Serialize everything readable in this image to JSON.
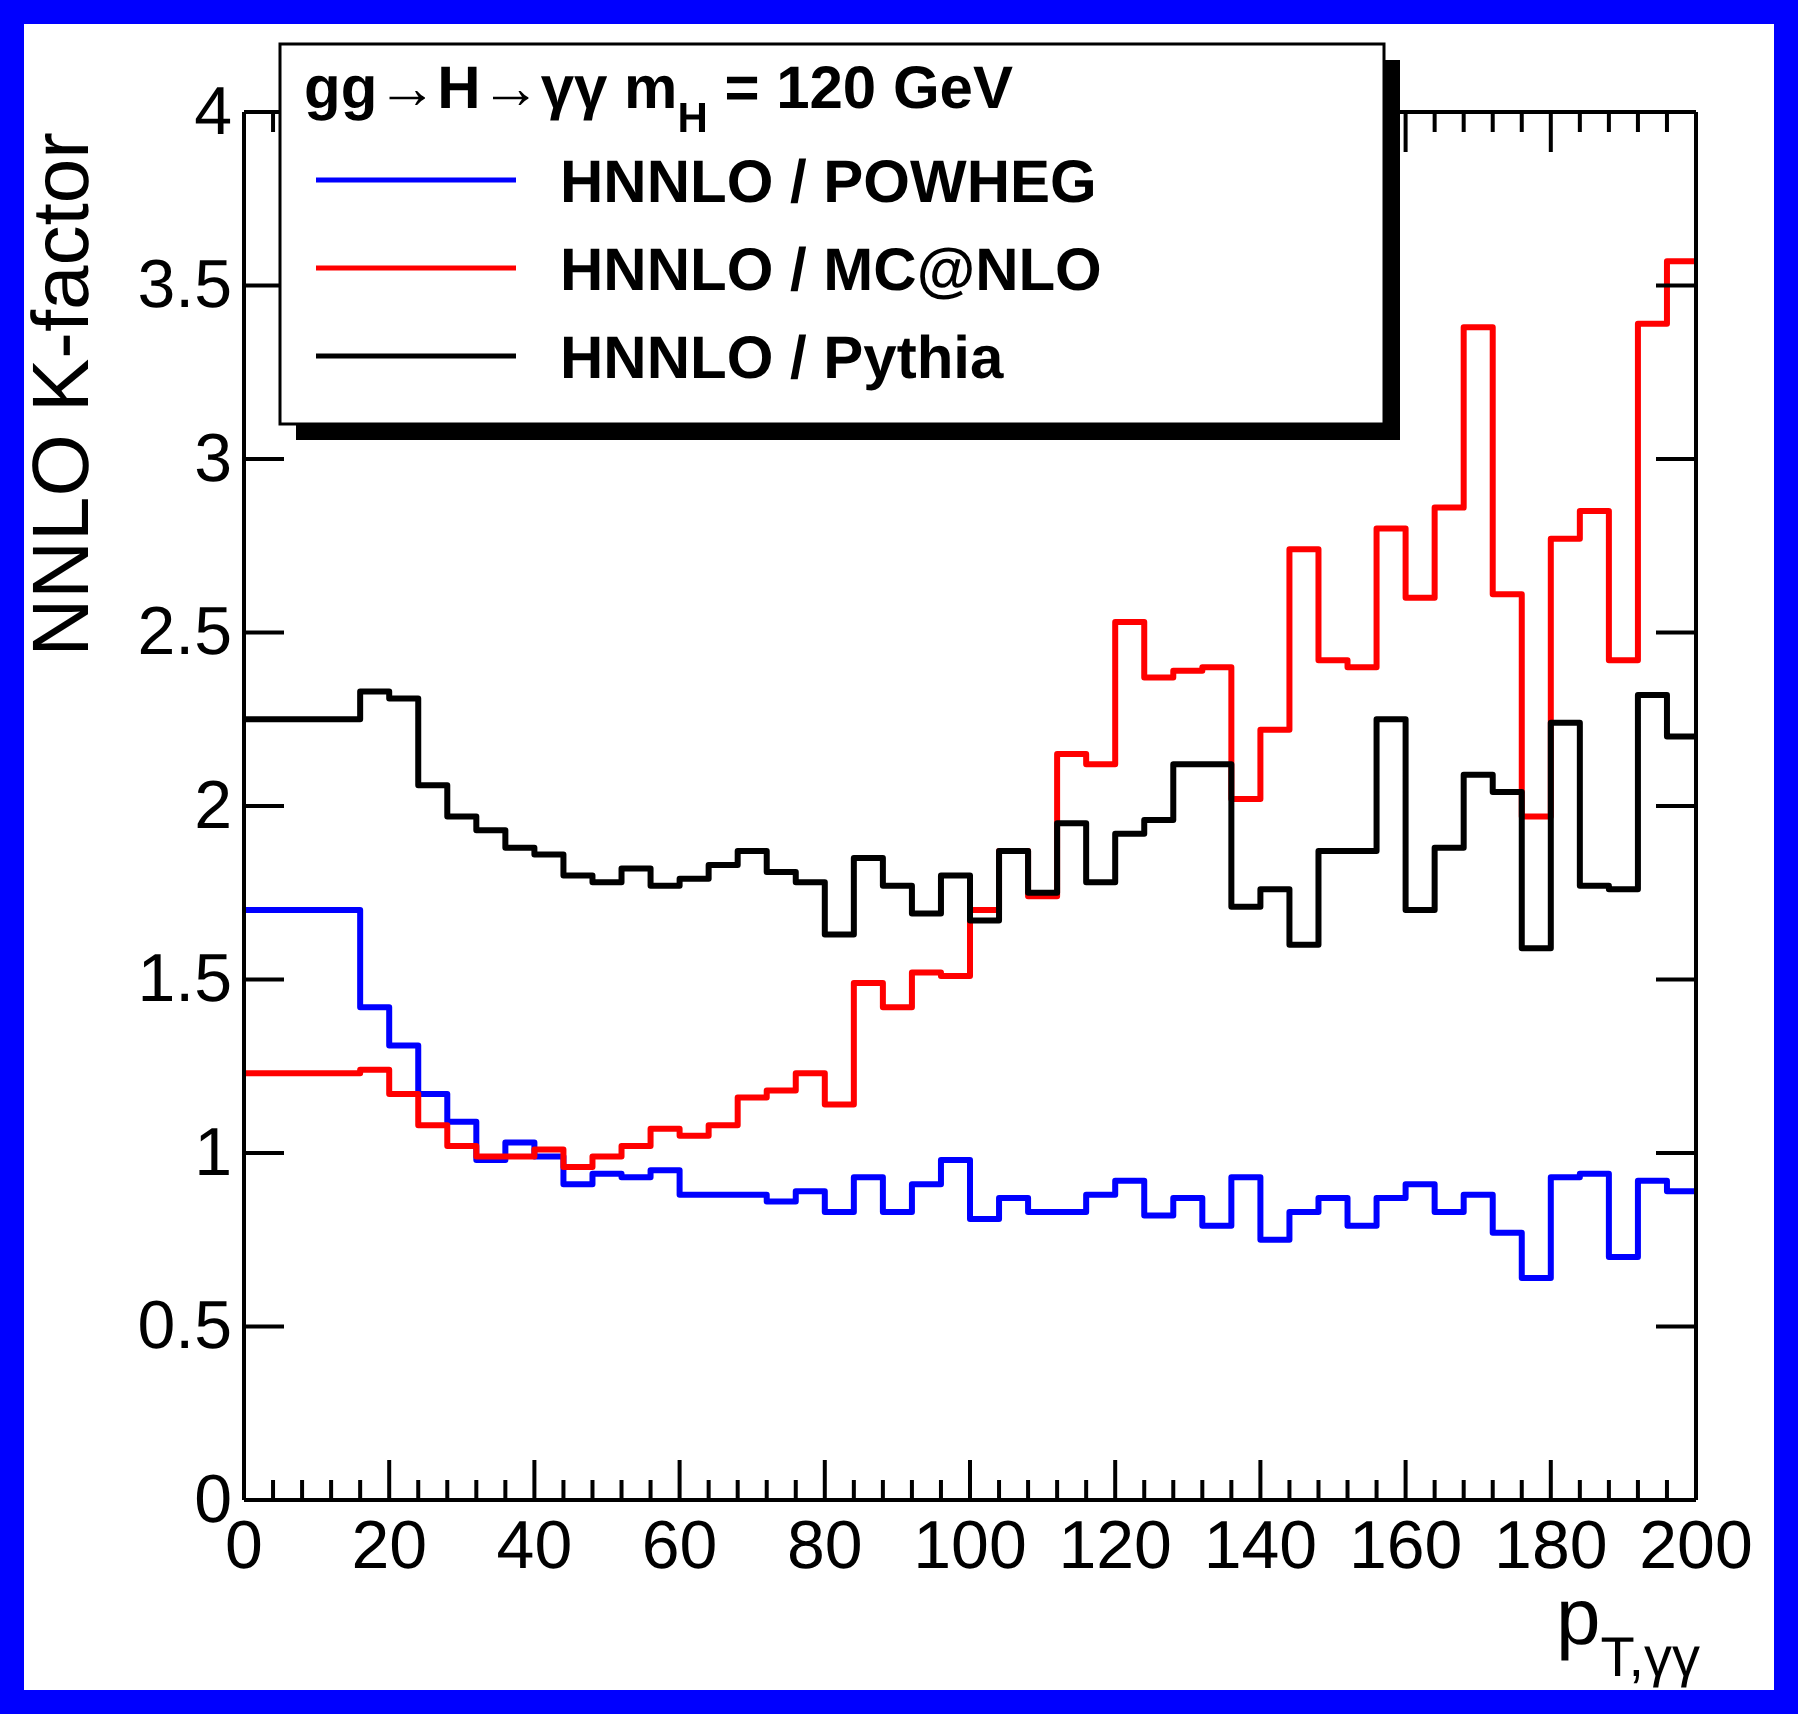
{
  "chart_data": {
    "type": "histogram",
    "xlabel": "p$_{T,γγ}$",
    "ylabel": "NNLO K-factor",
    "legend_title": "gg→H→γγ m$_{H}$ = 120 GeV",
    "legend": "top left",
    "bins": [
      0,
      4,
      8,
      12,
      16,
      20,
      24,
      28,
      32,
      36,
      40,
      44,
      48,
      52,
      56,
      60,
      64,
      68,
      72,
      76,
      80,
      84,
      88,
      92,
      96,
      100,
      104,
      108,
      112,
      116,
      120,
      124,
      128,
      132,
      136,
      140,
      144,
      148,
      152,
      156,
      160,
      164,
      168,
      172,
      176,
      180,
      184,
      188,
      192,
      196,
      200
    ],
    "series": [
      {
        "name": "HNNLO / POWHEG",
        "color": "#0000ff",
        "values": [
          1.7,
          1.7,
          1.7,
          1.7,
          1.42,
          1.31,
          1.17,
          1.09,
          0.98,
          1.03,
          0.99,
          0.91,
          0.94,
          0.93,
          0.95,
          0.88,
          0.88,
          0.88,
          0.86,
          0.89,
          0.83,
          0.93,
          0.83,
          0.91,
          0.98,
          0.81,
          0.87,
          0.83,
          0.83,
          0.88,
          0.92,
          0.82,
          0.87,
          0.79,
          0.93,
          0.75,
          0.83,
          0.87,
          0.79,
          0.87,
          0.91,
          0.83,
          0.88,
          0.77,
          0.64,
          0.93,
          0.94,
          0.7,
          0.92,
          0.89
        ]
      },
      {
        "name": "HNNLO / MC@NLO",
        "color": "#ff0000",
        "values": [
          1.23,
          1.23,
          1.23,
          1.23,
          1.24,
          1.17,
          1.08,
          1.02,
          0.99,
          0.99,
          1.01,
          0.96,
          0.99,
          1.02,
          1.07,
          1.05,
          1.08,
          1.16,
          1.18,
          1.23,
          1.14,
          1.49,
          1.42,
          1.52,
          1.51,
          1.7,
          1.87,
          1.74,
          2.15,
          2.12,
          2.53,
          2.37,
          2.39,
          2.4,
          2.02,
          2.22,
          2.74,
          2.42,
          2.4,
          2.8,
          2.6,
          2.86,
          3.38,
          2.61,
          1.97,
          2.77,
          2.85,
          2.42,
          3.39,
          3.57
        ]
      },
      {
        "name": "HNNLO / Pythia",
        "color": "#000000",
        "values": [
          2.25,
          2.25,
          2.25,
          2.25,
          2.33,
          2.31,
          2.06,
          1.97,
          1.93,
          1.88,
          1.86,
          1.8,
          1.78,
          1.82,
          1.77,
          1.79,
          1.83,
          1.87,
          1.81,
          1.78,
          1.63,
          1.85,
          1.77,
          1.69,
          1.8,
          1.67,
          1.87,
          1.75,
          1.95,
          1.78,
          1.92,
          1.96,
          2.12,
          2.12,
          1.71,
          1.76,
          1.6,
          1.87,
          1.87,
          2.25,
          1.7,
          1.88,
          2.09,
          2.04,
          1.59,
          2.24,
          1.77,
          1.76,
          2.32,
          2.2
        ]
      }
    ],
    "xlim": [
      0,
      200
    ],
    "ylim": [
      0,
      4
    ],
    "xticks": [
      0,
      {
        "value": 4,
        "label": null
      },
      {
        "value": 8,
        "label": null
      },
      {
        "value": 12,
        "label": null
      },
      {
        "value": 16,
        "label": null
      },
      20,
      {
        "value": 24,
        "label": null
      },
      {
        "value": 28,
        "label": null
      },
      {
        "value": 32,
        "label": null
      },
      {
        "value": 36,
        "label": null
      },
      40,
      {
        "value": 44,
        "label": null
      },
      {
        "value": 48,
        "label": null
      },
      {
        "value": 52,
        "label": null
      },
      {
        "value": 56,
        "label": null
      },
      60,
      {
        "value": 64,
        "label": null
      },
      {
        "value": 68,
        "label": null
      },
      {
        "value": 72,
        "label": null
      },
      {
        "value": 76,
        "label": null
      },
      80,
      {
        "value": 84,
        "label": null
      },
      {
        "value": 88,
        "label": null
      },
      {
        "value": 92,
        "label": null
      },
      {
        "value": 96,
        "label": null
      },
      100,
      {
        "value": 104,
        "label": null
      },
      {
        "value": 108,
        "label": null
      },
      {
        "value": 112,
        "label": null
      },
      {
        "value": 116,
        "label": null
      },
      120,
      {
        "value": 124,
        "label": null
      },
      {
        "value": 128,
        "label": null
      },
      {
        "value": 132,
        "label": null
      },
      {
        "value": 136,
        "label": null
      },
      140,
      {
        "value": 144,
        "label": null
      },
      {
        "value": 148,
        "label": null
      },
      {
        "value": 152,
        "label": null
      },
      {
        "value": 156,
        "label": null
      },
      160,
      {
        "value": 164,
        "label": null
      },
      {
        "value": 168,
        "label": null
      },
      {
        "value": 172,
        "label": null
      },
      {
        "value": 176,
        "label": null
      },
      180,
      {
        "value": 184,
        "label": null
      },
      {
        "value": 188,
        "label": null
      },
      {
        "value": 192,
        "label": null
      },
      {
        "value": 196,
        "label": null
      },
      200
    ],
    "yticks": [
      0,
      0.5,
      1,
      1.5,
      2,
      2.5,
      3,
      3.5,
      4
    ]
  }
}
